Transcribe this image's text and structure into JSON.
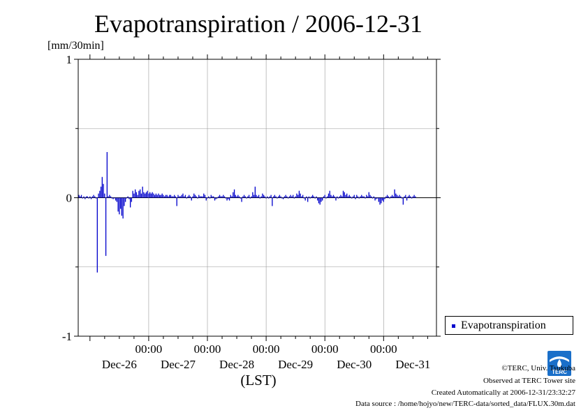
{
  "chart_data": {
    "type": "bar",
    "title": "Evapotranspiration / 2006-12-31",
    "ylabel": "[mm/30min]",
    "xlabel": "(LST)",
    "ylim": [
      -1,
      1
    ],
    "yticks": [
      -1,
      0,
      1
    ],
    "xlim_days": [
      -0.2,
      5.9
    ],
    "xtick_time_label": "00:00",
    "xtick_labels": [
      "Dec-26",
      "Dec-27",
      "Dec-28",
      "Dec-29",
      "Dec-30",
      "Dec-31"
    ],
    "grid": true,
    "legend_position": "right",
    "series": [
      {
        "name": "Evapotranspiration",
        "color": "#0000cc",
        "interval": "30min",
        "start": "2006-12-25 19:30",
        "values": [
          0.02,
          0.01,
          0.02,
          0.0,
          0.01,
          -0.01,
          0.01,
          0.01,
          0.0,
          0.01,
          -0.01,
          0.01,
          0.02,
          0.01,
          0.0,
          -0.54,
          0.03,
          0.05,
          0.08,
          0.15,
          0.1,
          0.03,
          -0.42,
          0.33,
          0.01,
          0.02,
          0.01,
          0.0,
          -0.01,
          0.0,
          -0.02,
          -0.03,
          -0.1,
          -0.12,
          -0.08,
          -0.13,
          -0.15,
          -0.06,
          -0.03,
          0.0,
          0.01,
          -0.01,
          -0.07,
          -0.03,
          0.05,
          0.03,
          0.06,
          0.04,
          0.02,
          0.05,
          0.06,
          0.03,
          0.08,
          0.04,
          0.03,
          0.04,
          0.05,
          0.03,
          0.04,
          0.03,
          0.04,
          0.03,
          0.02,
          0.03,
          0.02,
          0.03,
          0.02,
          0.02,
          0.03,
          0.02,
          0.01,
          0.02,
          0.02,
          0.01,
          0.02,
          0.02,
          0.01,
          0.01,
          0.02,
          0.01,
          -0.06,
          0.02,
          0.01,
          0.01,
          0.02,
          0.03,
          0.01,
          0.02,
          0.0,
          0.01,
          0.02,
          0.01,
          -0.02,
          0.01,
          0.03,
          0.02,
          0.01,
          0.0,
          0.02,
          0.01,
          0.01,
          0.01,
          0.03,
          0.02,
          -0.02,
          0.0,
          0.01,
          0.0,
          0.02,
          0.01,
          0.01,
          -0.02,
          -0.01,
          0.0,
          0.01,
          0.02,
          0.01,
          0.01,
          0.02,
          0.01,
          0.0,
          -0.02,
          -0.01,
          -0.02,
          0.02,
          0.01,
          0.04,
          0.06,
          0.02,
          0.01,
          0.02,
          0.01,
          0.0,
          -0.03,
          0.01,
          0.02,
          0.01,
          0.0,
          0.01,
          0.02,
          0.0,
          0.01,
          0.04,
          0.02,
          0.08,
          0.02,
          0.01,
          0.02,
          0.0,
          0.01,
          0.03,
          0.02,
          0.01,
          0.0,
          0.01,
          0.0,
          0.01,
          0.02,
          -0.06,
          0.01,
          0.02,
          0.01,
          0.0,
          0.01,
          0.02,
          0.01,
          0.0,
          -0.01,
          0.01,
          0.02,
          0.01,
          0.0,
          0.01,
          0.02,
          0.01,
          0.02,
          0.0,
          0.01,
          0.03,
          0.02,
          0.05,
          0.03,
          0.01,
          0.02,
          0.0,
          -0.02,
          0.01,
          -0.03,
          0.01,
          0.0,
          0.01,
          0.02,
          0.01,
          0.0,
          0.01,
          -0.02,
          -0.04,
          -0.05,
          -0.03,
          -0.02,
          0.01,
          0.02,
          0.0,
          0.01,
          0.03,
          0.05,
          0.02,
          0.01,
          0.02,
          0.01,
          -0.02,
          0.01,
          0.0,
          0.01,
          0.02,
          0.01,
          0.05,
          0.04,
          0.02,
          0.03,
          0.01,
          0.02,
          0.01,
          0.0,
          0.01,
          0.02,
          -0.01,
          0.02,
          0.01,
          0.0,
          0.01,
          0.02,
          0.01,
          0.01,
          0.0,
          0.02,
          0.01,
          0.04,
          0.02,
          0.01,
          0.0,
          0.01,
          -0.02,
          -0.01,
          0.0,
          -0.03,
          -0.05,
          -0.04,
          -0.02,
          -0.03,
          -0.01,
          0.01,
          0.02,
          0.01,
          0.0,
          0.01,
          0.02,
          0.01,
          0.06,
          0.03,
          0.02,
          0.01,
          0.02,
          0.01,
          0.0,
          -0.05,
          0.01,
          0.02,
          -0.02,
          0.01,
          0.02,
          0.01,
          0.0,
          0.01,
          0.02,
          0.01
        ]
      }
    ]
  },
  "legend": {
    "label": "Evapotranspiration"
  },
  "credits": {
    "copyright": "©TERC, Univ. Tsukuba",
    "site": "Observed at TERC Tower site",
    "created": "Created Automatically at 2006-12-31/23:32:27",
    "source": "Data source : /home/hojyo/new/TERC-data/sorted_data/FLUX.30m.dat"
  },
  "logo": {
    "text": "TERC",
    "icon": "terc-logo-icon",
    "color": "#1a6fc9"
  }
}
